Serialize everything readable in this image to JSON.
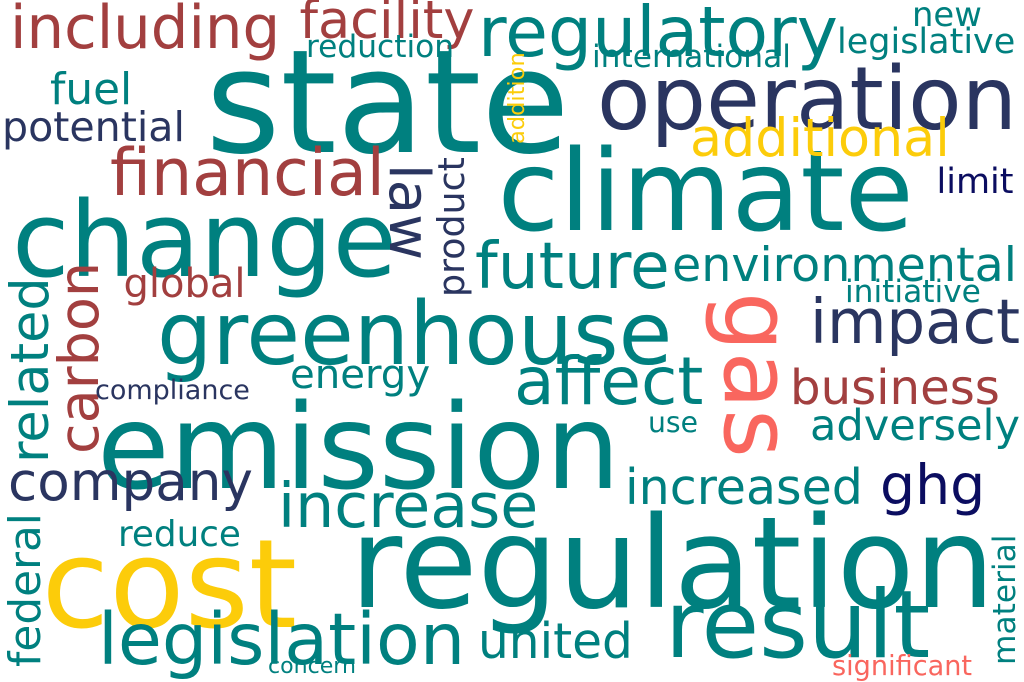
{
  "palette": {
    "teal": "#00807f",
    "navy": "#2a3560",
    "brick": "#a23f3f",
    "gold": "#fccc0a",
    "salmon": "#f9665e",
    "deep_navy": "#0b0d60"
  },
  "words": [
    {
      "text": "state",
      "color": "#00807f",
      "rot": 0
    },
    {
      "text": "regulation",
      "color": "#00807f",
      "rot": 0
    },
    {
      "text": "emission",
      "color": "#00807f",
      "rot": 0
    },
    {
      "text": "climate",
      "color": "#00807f",
      "rot": 0
    },
    {
      "text": "change",
      "color": "#00807f",
      "rot": 0
    },
    {
      "text": "greenhouse",
      "color": "#00807f",
      "rot": 0
    },
    {
      "text": "gas",
      "color": "#f9665e",
      "rot": 90
    },
    {
      "text": "cost",
      "color": "#fccc0a",
      "rot": 0
    },
    {
      "text": "operation",
      "color": "#2a3560",
      "rot": 0
    },
    {
      "text": "result",
      "color": "#00807f",
      "rot": 0
    },
    {
      "text": "regulatory",
      "color": "#00807f",
      "rot": 0
    },
    {
      "text": "including",
      "color": "#a23f3f",
      "rot": 0
    },
    {
      "text": "legislation",
      "color": "#00807f",
      "rot": 0
    },
    {
      "text": "company",
      "color": "#2a3560",
      "rot": 0
    },
    {
      "text": "increase",
      "color": "#00807f",
      "rot": 0
    },
    {
      "text": "financial",
      "color": "#a23f3f",
      "rot": 0
    },
    {
      "text": "impact",
      "color": "#2a3560",
      "rot": 0
    },
    {
      "text": "affect",
      "color": "#00807f",
      "rot": 0
    },
    {
      "text": "future",
      "color": "#00807f",
      "rot": 0
    },
    {
      "text": "law",
      "color": "#2a3560",
      "rot": 90
    },
    {
      "text": "ghg",
      "color": "#0b0d60",
      "rot": 0
    },
    {
      "text": "carbon",
      "color": "#a23f3f",
      "rot": -90
    },
    {
      "text": "related",
      "color": "#00807f",
      "rot": -90
    },
    {
      "text": "environmental",
      "color": "#00807f",
      "rot": 0
    },
    {
      "text": "increased",
      "color": "#00807f",
      "rot": 0
    },
    {
      "text": "additional",
      "color": "#fccc0a",
      "rot": 0
    },
    {
      "text": "business",
      "color": "#a23f3f",
      "rot": 0
    },
    {
      "text": "adversely",
      "color": "#00807f",
      "rot": 0
    },
    {
      "text": "united",
      "color": "#00807f",
      "rot": 0
    },
    {
      "text": "facility",
      "color": "#a23f3f",
      "rot": 0
    },
    {
      "text": "federal",
      "color": "#00807f",
      "rot": -90
    },
    {
      "text": "energy",
      "color": "#00807f",
      "rot": 0
    },
    {
      "text": "fuel",
      "color": "#00807f",
      "rot": 0
    },
    {
      "text": "potential",
      "color": "#2a3560",
      "rot": 0
    },
    {
      "text": "product",
      "color": "#2a3560",
      "rot": -90
    },
    {
      "text": "new",
      "color": "#00807f",
      "rot": 0
    },
    {
      "text": "legislative",
      "color": "#00807f",
      "rot": 0
    },
    {
      "text": "international",
      "color": "#00807f",
      "rot": 0
    },
    {
      "text": "reduction",
      "color": "#00807f",
      "rot": 0
    },
    {
      "text": "global",
      "color": "#a23f3f",
      "rot": 0
    },
    {
      "text": "reduce",
      "color": "#00807f",
      "rot": 0
    },
    {
      "text": "compliance",
      "color": "#2a3560",
      "rot": 0
    },
    {
      "text": "limit",
      "color": "#0b0d60",
      "rot": 0
    },
    {
      "text": "initiative",
      "color": "#00807f",
      "rot": 0
    },
    {
      "text": "use",
      "color": "#00807f",
      "rot": 0
    },
    {
      "text": "material",
      "color": "#00807f",
      "rot": -90
    },
    {
      "text": "concern",
      "color": "#00807f",
      "rot": 0
    },
    {
      "text": "significant",
      "color": "#f9665e",
      "rot": 0
    },
    {
      "text": "addition",
      "color": "#fccc0a",
      "rot": -90
    }
  ]
}
